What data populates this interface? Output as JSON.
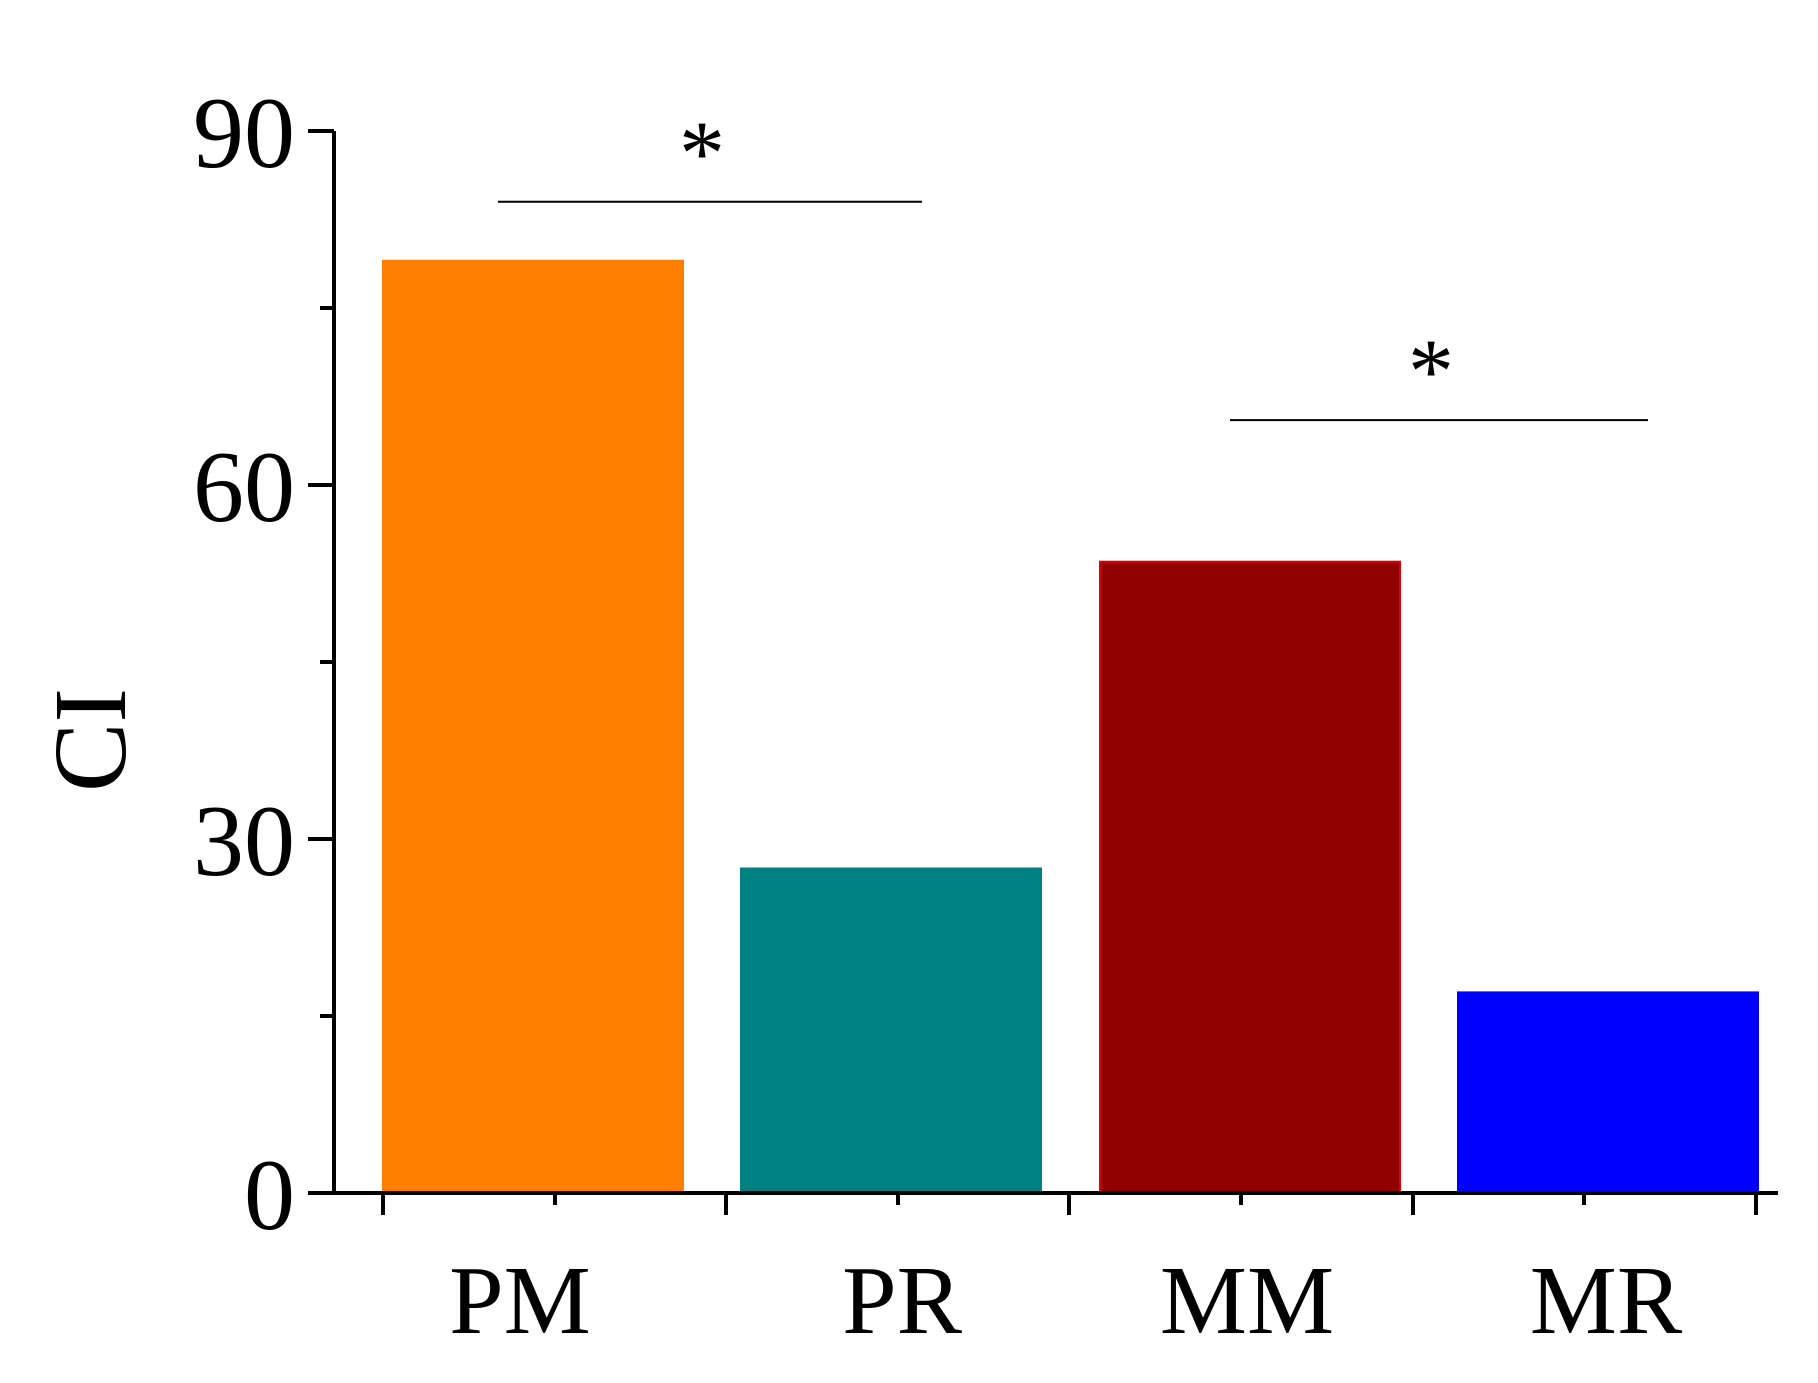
{
  "chart_data": {
    "type": "bar",
    "title": "",
    "xlabel": "",
    "ylabel": "CI",
    "ylim": [
      0,
      90
    ],
    "yticks": [
      0,
      30,
      60,
      90
    ],
    "minor_yticks": [
      15,
      45,
      75
    ],
    "grid": false,
    "categories": [
      "PM",
      "PR",
      "MM",
      "MR"
    ],
    "values": [
      79,
      27.5,
      53.5,
      17
    ],
    "colors": [
      "#FF8000",
      "#008080",
      "#900000",
      "#0000FF"
    ],
    "edge_colors": [
      "#FF8000",
      "#008080",
      "#E00000",
      "#0000FF"
    ],
    "significance": [
      {
        "from": "PM",
        "to": "PR",
        "label": "*",
        "level": 84
      },
      {
        "from": "MM",
        "to": "MR",
        "label": "*",
        "level": 65.5
      }
    ]
  }
}
